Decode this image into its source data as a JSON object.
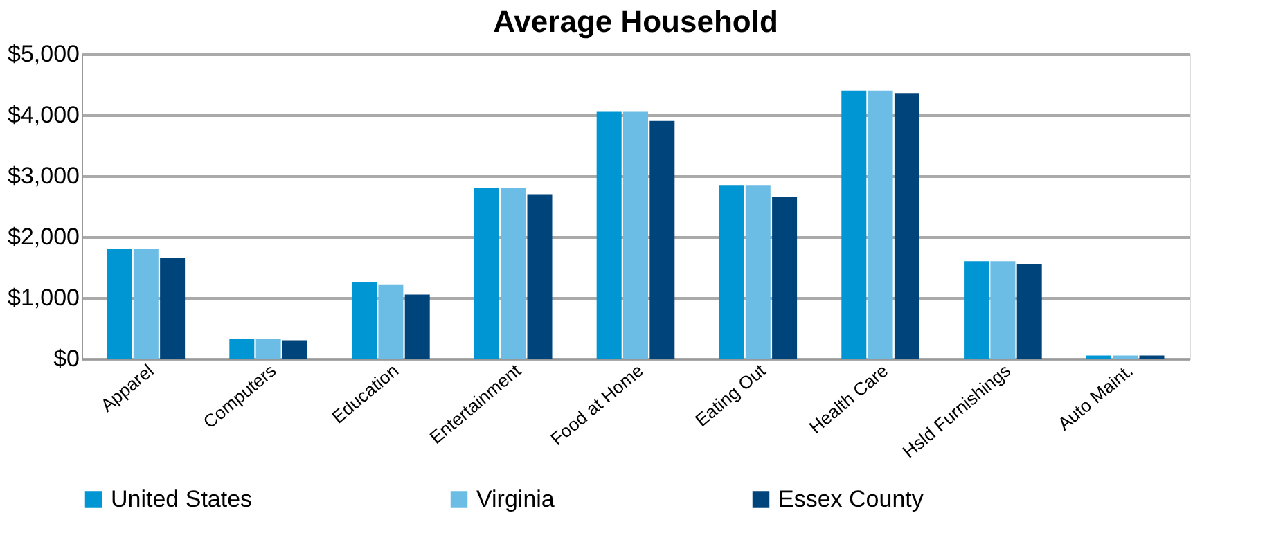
{
  "chart_data": {
    "type": "bar",
    "title": "Average Household",
    "categories": [
      "Apparel",
      "Computers",
      "Education",
      "Entertainment",
      "Food at Home",
      "Eating Out",
      "Health Care",
      "Hsld Furnishings",
      "Auto Maint."
    ],
    "series": [
      {
        "name": "United States",
        "color": "#0095d3",
        "values": [
          1800,
          330,
          1250,
          2800,
          4050,
          2850,
          4400,
          1600,
          50
        ]
      },
      {
        "name": "Virginia",
        "color": "#6bbde6",
        "values": [
          1800,
          330,
          1220,
          2800,
          4050,
          2850,
          4400,
          1600,
          50
        ]
      },
      {
        "name": "Essex County",
        "color": "#00447c",
        "values": [
          1650,
          300,
          1050,
          2700,
          3900,
          2650,
          4350,
          1550,
          50
        ]
      }
    ],
    "ylim": [
      0,
      5000
    ],
    "yticks": [
      {
        "value": 0,
        "label": "$0"
      },
      {
        "value": 1000,
        "label": "$1,000"
      },
      {
        "value": 2000,
        "label": "$2,000"
      },
      {
        "value": 3000,
        "label": "$3,000"
      },
      {
        "value": 4000,
        "label": "$4,000"
      },
      {
        "value": 5000,
        "label": "$5,000"
      }
    ],
    "grid": "y",
    "legend": "bottom"
  }
}
